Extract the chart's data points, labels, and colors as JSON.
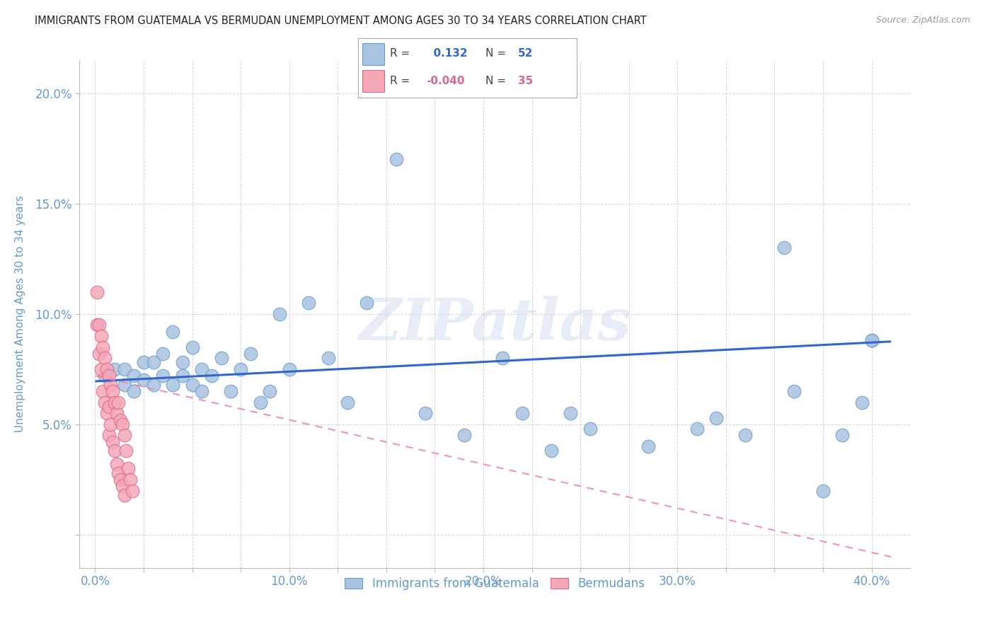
{
  "title": "IMMIGRANTS FROM GUATEMALA VS BERMUDAN UNEMPLOYMENT AMONG AGES 30 TO 34 YEARS CORRELATION CHART",
  "source": "Source: ZipAtlas.com",
  "xlabel_ticks": [
    "0.0%",
    "",
    "",
    "",
    "10.0%",
    "",
    "",
    "",
    "20.0%",
    "",
    "",
    "",
    "30.0%",
    "",
    "",
    "",
    "40.0%"
  ],
  "xlabel_tick_vals": [
    0.0,
    0.025,
    0.05,
    0.075,
    0.1,
    0.125,
    0.15,
    0.175,
    0.2,
    0.225,
    0.25,
    0.275,
    0.3,
    0.325,
    0.35,
    0.375,
    0.4
  ],
  "ylabel_ticks": [
    "",
    "5.0%",
    "",
    "10.0%",
    "",
    "15.0%",
    "",
    "20.0%"
  ],
  "ylabel_tick_vals": [
    0.0,
    0.05,
    0.075,
    0.1,
    0.125,
    0.15,
    0.175,
    0.2
  ],
  "ylabel": "Unemployment Among Ages 30 to 34 years",
  "legend_label1": "Immigrants from Guatemala",
  "legend_label2": "Bermudans",
  "R1": 0.132,
  "N1": 52,
  "R2": -0.04,
  "N2": 35,
  "watermark_text": "ZIPatlas",
  "blue_color": "#A8C4E0",
  "blue_edge_color": "#6699CC",
  "pink_color": "#F4A8B8",
  "pink_edge_color": "#DD6688",
  "blue_line_color": "#3366CC",
  "pink_line_color": "#EE88AA",
  "title_color": "#222222",
  "axis_label_color": "#6699CC",
  "tick_color": "#6699CC",
  "grid_color": "#CCCCCC",
  "blue_scatter_x": [
    0.005,
    0.01,
    0.015,
    0.015,
    0.02,
    0.02,
    0.025,
    0.025,
    0.03,
    0.03,
    0.035,
    0.035,
    0.04,
    0.04,
    0.045,
    0.045,
    0.05,
    0.05,
    0.055,
    0.055,
    0.06,
    0.065,
    0.07,
    0.075,
    0.08,
    0.085,
    0.09,
    0.095,
    0.1,
    0.11,
    0.12,
    0.13,
    0.14,
    0.155,
    0.17,
    0.19,
    0.21,
    0.22,
    0.235,
    0.245,
    0.255,
    0.285,
    0.31,
    0.32,
    0.335,
    0.355,
    0.36,
    0.375,
    0.385,
    0.395,
    0.4,
    0.4
  ],
  "blue_scatter_y": [
    0.072,
    0.075,
    0.075,
    0.068,
    0.072,
    0.065,
    0.078,
    0.07,
    0.078,
    0.068,
    0.082,
    0.072,
    0.092,
    0.068,
    0.078,
    0.072,
    0.068,
    0.085,
    0.075,
    0.065,
    0.072,
    0.08,
    0.065,
    0.075,
    0.082,
    0.06,
    0.065,
    0.1,
    0.075,
    0.105,
    0.08,
    0.06,
    0.105,
    0.17,
    0.055,
    0.045,
    0.08,
    0.055,
    0.038,
    0.055,
    0.048,
    0.04,
    0.048,
    0.053,
    0.045,
    0.13,
    0.065,
    0.02,
    0.045,
    0.06,
    0.088,
    0.088
  ],
  "pink_scatter_x": [
    0.001,
    0.001,
    0.002,
    0.002,
    0.003,
    0.003,
    0.004,
    0.004,
    0.005,
    0.005,
    0.006,
    0.006,
    0.007,
    0.007,
    0.007,
    0.008,
    0.008,
    0.009,
    0.009,
    0.01,
    0.01,
    0.011,
    0.011,
    0.012,
    0.012,
    0.013,
    0.013,
    0.014,
    0.014,
    0.015,
    0.015,
    0.016,
    0.017,
    0.018,
    0.019
  ],
  "pink_scatter_y": [
    0.11,
    0.095,
    0.095,
    0.082,
    0.09,
    0.075,
    0.085,
    0.065,
    0.08,
    0.06,
    0.075,
    0.055,
    0.072,
    0.058,
    0.045,
    0.068,
    0.05,
    0.065,
    0.042,
    0.06,
    0.038,
    0.055,
    0.032,
    0.06,
    0.028,
    0.052,
    0.025,
    0.05,
    0.022,
    0.045,
    0.018,
    0.038,
    0.03,
    0.025,
    0.02
  ],
  "blue_line_x": [
    0.0,
    0.41
  ],
  "blue_line_y_start": 0.0695,
  "blue_line_y_end": 0.0875,
  "pink_line_x": [
    0.0,
    0.41
  ],
  "pink_line_y_start": 0.072,
  "pink_line_y_end": -0.01,
  "xlim": [
    -0.008,
    0.42
  ],
  "ylim": [
    -0.015,
    0.215
  ]
}
